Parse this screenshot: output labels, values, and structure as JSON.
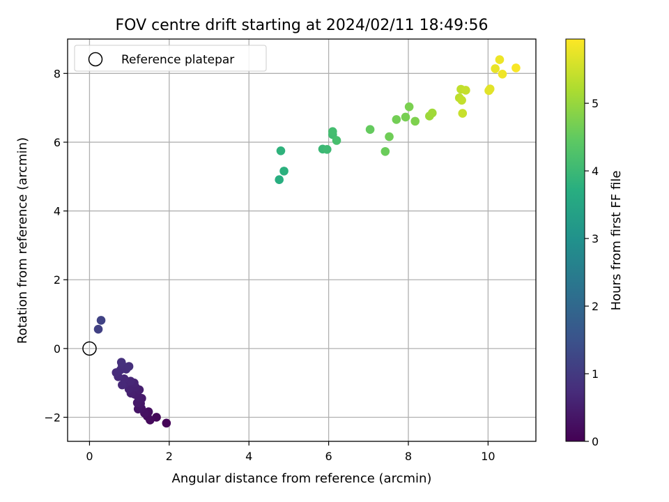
{
  "chart_data": {
    "type": "scatter",
    "title": "FOV centre drift starting at 2024/02/11 18:49:56",
    "xlabel": "Angular distance from reference (arcmin)",
    "ylabel": "Rotation from reference (arcmin)",
    "xlim": [
      -0.55,
      11.2
    ],
    "ylim": [
      -2.7,
      9.0
    ],
    "xticks": [
      0,
      2,
      4,
      6,
      8,
      10
    ],
    "yticks": [
      -2,
      0,
      2,
      4,
      6,
      8
    ],
    "grid": true,
    "legend": {
      "placement": "upper-left",
      "entries": [
        "Reference platepar"
      ]
    },
    "reference_point": {
      "x": 0,
      "y": 0,
      "marker": "open-circle",
      "color": "#000000"
    },
    "colorbar": {
      "label": "Hours from first FF file",
      "range": [
        0,
        5.95
      ],
      "ticks": [
        0,
        1,
        2,
        3,
        4,
        5
      ],
      "colormap": "viridis"
    },
    "points": [
      {
        "x": 1.93,
        "y": -2.17,
        "c": 0.05
      },
      {
        "x": 1.68,
        "y": -2.0,
        "c": 0.1
      },
      {
        "x": 1.52,
        "y": -2.08,
        "c": 0.15
      },
      {
        "x": 1.45,
        "y": -1.97,
        "c": 0.2
      },
      {
        "x": 1.48,
        "y": -1.84,
        "c": 0.22
      },
      {
        "x": 1.38,
        "y": -1.88,
        "c": 0.27
      },
      {
        "x": 1.3,
        "y": -1.74,
        "c": 0.3
      },
      {
        "x": 1.22,
        "y": -1.76,
        "c": 0.34
      },
      {
        "x": 1.28,
        "y": -1.6,
        "c": 0.37
      },
      {
        "x": 1.2,
        "y": -1.58,
        "c": 0.4
      },
      {
        "x": 1.31,
        "y": -1.45,
        "c": 0.42
      },
      {
        "x": 1.22,
        "y": -1.4,
        "c": 0.45
      },
      {
        "x": 1.13,
        "y": -1.33,
        "c": 0.47
      },
      {
        "x": 1.25,
        "y": -1.2,
        "c": 0.5
      },
      {
        "x": 1.04,
        "y": -1.3,
        "c": 0.52
      },
      {
        "x": 1.15,
        "y": -1.12,
        "c": 0.55
      },
      {
        "x": 0.99,
        "y": -1.18,
        "c": 0.57
      },
      {
        "x": 1.12,
        "y": -1.0,
        "c": 0.6
      },
      {
        "x": 0.92,
        "y": -1.0,
        "c": 0.62
      },
      {
        "x": 1.03,
        "y": -0.95,
        "c": 0.64
      },
      {
        "x": 0.87,
        "y": -0.88,
        "c": 0.66
      },
      {
        "x": 0.82,
        "y": -1.06,
        "c": 0.68
      },
      {
        "x": 0.72,
        "y": -0.82,
        "c": 0.7
      },
      {
        "x": 0.67,
        "y": -0.7,
        "c": 0.72
      },
      {
        "x": 0.78,
        "y": -0.62,
        "c": 0.74
      },
      {
        "x": 0.92,
        "y": -0.6,
        "c": 0.76
      },
      {
        "x": 0.82,
        "y": -0.48,
        "c": 0.78
      },
      {
        "x": 0.99,
        "y": -0.52,
        "c": 0.8
      },
      {
        "x": 0.8,
        "y": -0.4,
        "c": 0.82
      },
      {
        "x": 0.22,
        "y": 0.56,
        "c": 1.12
      },
      {
        "x": 0.29,
        "y": 0.82,
        "c": 1.17
      },
      {
        "x": 4.76,
        "y": 4.91,
        "c": 3.72
      },
      {
        "x": 4.88,
        "y": 5.16,
        "c": 3.77
      },
      {
        "x": 4.8,
        "y": 5.75,
        "c": 3.82
      },
      {
        "x": 5.85,
        "y": 5.8,
        "c": 3.98
      },
      {
        "x": 5.96,
        "y": 5.79,
        "c": 4.03
      },
      {
        "x": 6.1,
        "y": 6.22,
        "c": 4.08
      },
      {
        "x": 6.1,
        "y": 6.31,
        "c": 4.12
      },
      {
        "x": 6.2,
        "y": 6.05,
        "c": 4.16
      },
      {
        "x": 7.04,
        "y": 6.37,
        "c": 4.52
      },
      {
        "x": 7.42,
        "y": 5.73,
        "c": 4.58
      },
      {
        "x": 7.52,
        "y": 6.16,
        "c": 4.62
      },
      {
        "x": 7.7,
        "y": 6.66,
        "c": 4.66
      },
      {
        "x": 7.93,
        "y": 6.73,
        "c": 4.7
      },
      {
        "x": 8.02,
        "y": 7.03,
        "c": 4.73
      },
      {
        "x": 8.17,
        "y": 6.61,
        "c": 4.76
      },
      {
        "x": 8.53,
        "y": 6.76,
        "c": 5.05
      },
      {
        "x": 8.6,
        "y": 6.85,
        "c": 5.08
      },
      {
        "x": 9.28,
        "y": 7.29,
        "c": 5.35
      },
      {
        "x": 9.32,
        "y": 7.54,
        "c": 5.38
      },
      {
        "x": 9.34,
        "y": 7.22,
        "c": 5.4
      },
      {
        "x": 9.44,
        "y": 7.51,
        "c": 5.43
      },
      {
        "x": 9.36,
        "y": 6.84,
        "c": 5.45
      },
      {
        "x": 10.02,
        "y": 7.5,
        "c": 5.68
      },
      {
        "x": 10.05,
        "y": 7.55,
        "c": 5.7
      },
      {
        "x": 10.18,
        "y": 8.14,
        "c": 5.76
      },
      {
        "x": 10.29,
        "y": 8.4,
        "c": 5.8
      },
      {
        "x": 10.36,
        "y": 7.98,
        "c": 5.82
      },
      {
        "x": 10.7,
        "y": 8.16,
        "c": 5.9
      }
    ]
  }
}
